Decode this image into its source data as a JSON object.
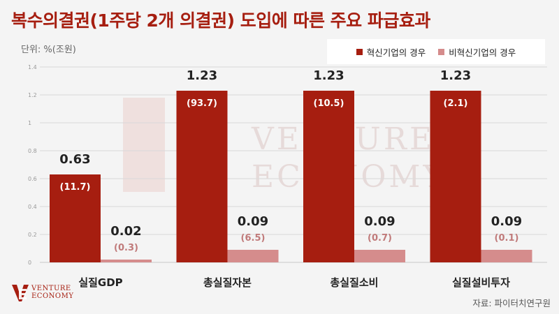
{
  "title": "복수의결권(1주당 2개 의결권) 도입에 따른 주요 파급효과",
  "unit_label": "단위: %(조원)",
  "source": "자료: 파이터치연구원",
  "logo": {
    "line1": "VENTURE",
    "line2": "ECONOMY"
  },
  "watermark": {
    "line1": "VENTURE",
    "line2": "ECONOMY"
  },
  "colors": {
    "innovative": "#a61e10",
    "non_innovative": "#d58c8c",
    "title": "#a61e10"
  },
  "chart_data": {
    "type": "bar",
    "categories": [
      "실질GDP",
      "총실질자본",
      "총실질소비",
      "실질설비투자"
    ],
    "series": [
      {
        "name": "혁신기업의 경우",
        "values": [
          0.63,
          1.23,
          1.23,
          1.23
        ],
        "sub_labels": [
          "(11.7)",
          "(93.7)",
          "(10.5)",
          "(2.1)"
        ]
      },
      {
        "name": "비혁신기업의 경우",
        "values": [
          0.02,
          0.09,
          0.09,
          0.09
        ],
        "sub_labels": [
          "(0.3)",
          "(6.5)",
          "(0.7)",
          "(0.1)"
        ]
      }
    ],
    "ylim": [
      0,
      1.4
    ],
    "yticks": [
      0,
      0.2,
      0.4,
      0.6,
      0.8,
      1,
      1.2,
      1.4
    ],
    "grid": true,
    "legend": "top-right"
  }
}
